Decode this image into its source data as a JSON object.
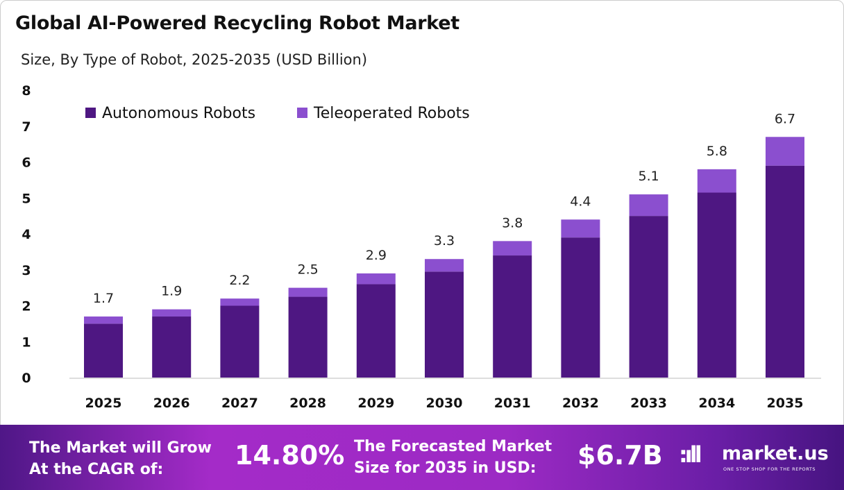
{
  "title": "Global AI-Powered Recycling Robot Market",
  "subtitle": "Size, By Type of Robot, 2025-2035 (USD Billion)",
  "chart_data": {
    "type": "bar",
    "stacked": true,
    "categories": [
      "2025",
      "2026",
      "2027",
      "2028",
      "2029",
      "2030",
      "2031",
      "2032",
      "2033",
      "2034",
      "2035"
    ],
    "series": [
      {
        "name": "Autonomous Robots",
        "color": "#4e1782",
        "values": [
          1.5,
          1.7,
          2.0,
          2.25,
          2.6,
          2.95,
          3.4,
          3.9,
          4.5,
          5.15,
          5.9
        ]
      },
      {
        "name": "Teleoperated Robots",
        "color": "#8b4fcf",
        "values": [
          0.2,
          0.2,
          0.2,
          0.25,
          0.3,
          0.35,
          0.4,
          0.5,
          0.6,
          0.65,
          0.8
        ]
      }
    ],
    "totals_labels": [
      "1.7",
      "1.9",
      "2.2",
      "2.5",
      "2.9",
      "3.3",
      "3.8",
      "4.4",
      "5.1",
      "5.8",
      "6.7"
    ],
    "ylim": [
      0,
      8
    ],
    "yticks": [
      "0",
      "1",
      "2",
      "3",
      "4",
      "5",
      "6",
      "7",
      "8"
    ],
    "grid": false,
    "legend": "top-left"
  },
  "footer": {
    "cagr_text_1": "The Market will Grow",
    "cagr_text_2": "At the CAGR of:",
    "cagr_value": "14.80%",
    "forecast_text_1": "The Forecasted Market",
    "forecast_text_2": "Size for 2035 in USD:",
    "forecast_value": "$6.7B",
    "logo_name": "market.us",
    "logo_tagline": "ONE STOP SHOP FOR THE REPORTS"
  }
}
